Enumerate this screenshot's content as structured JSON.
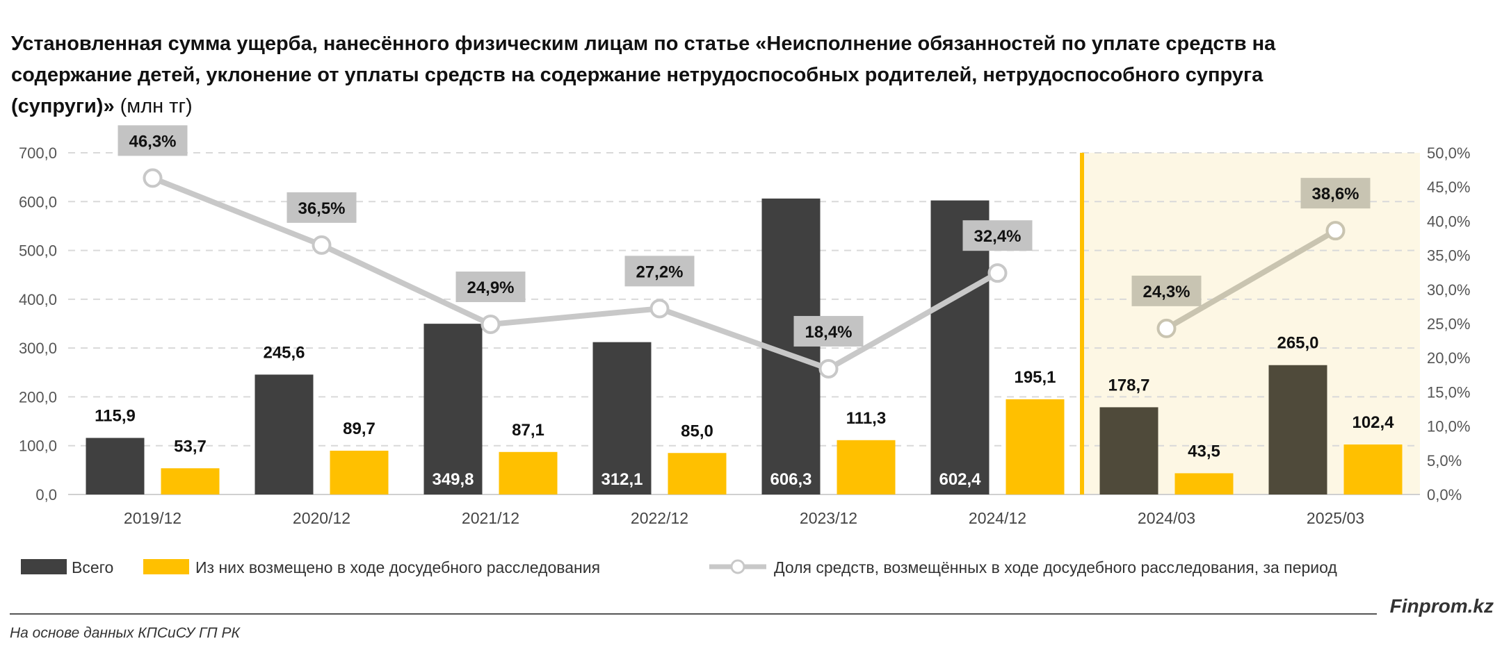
{
  "chart_data": {
    "type": "bar",
    "title": "Установленная сумма ущерба, нанесённого физическим лицам по статье «Неисполнение обязанностей по уплате средств на содержание детей, уклонение от уплаты средств на содержание нетрудоспособных родителей, нетрудоспособного супруга (супруги)»",
    "title_lines": [
      "Установленная сумма ущерба, нанесённого физическим лицам по статье «Неисполнение обязанностей по уплате средств на",
      "содержание детей, уклонение от уплаты средств на содержание нетрудоспособных родителей, нетрудоспособного супруга",
      "(супруги)»"
    ],
    "unit": "(млн тг)",
    "categories": [
      "2019/12",
      "2020/12",
      "2021/12",
      "2022/12",
      "2023/12",
      "2024/12",
      "2024/03",
      "2025/03"
    ],
    "series": [
      {
        "name": "Всего",
        "type": "bar",
        "axis": "left",
        "values": [
          115.9,
          245.6,
          349.8,
          312.1,
          606.3,
          602.4,
          178.7,
          265.0
        ],
        "labels": [
          "115,9",
          "245,6",
          "349,8",
          "312,1",
          "606,3",
          "602,4",
          "178,7",
          "265,0"
        ]
      },
      {
        "name": "Из них возмещено в ходе досудебного расследования",
        "type": "bar",
        "axis": "left",
        "values": [
          53.7,
          89.7,
          87.1,
          85.0,
          111.3,
          195.1,
          43.5,
          102.4
        ],
        "labels": [
          "53,7",
          "89,7",
          "87,1",
          "85,0",
          "111,3",
          "195,1",
          "43,5",
          "102,4"
        ]
      },
      {
        "name": "Доля средств, возмещённых в ходе досудебного расследования, за период",
        "type": "line",
        "axis": "right",
        "values": [
          46.3,
          36.5,
          24.9,
          27.2,
          18.4,
          32.4,
          24.3,
          38.6
        ],
        "labels": [
          "46,3%",
          "36,5%",
          "24,9%",
          "27,2%",
          "18,4%",
          "32,4%",
          "24,3%",
          "38,6%"
        ]
      }
    ],
    "ylim_left": [
      0,
      700
    ],
    "yticks_left": [
      "0,0",
      "100,0",
      "200,0",
      "300,0",
      "400,0",
      "500,0",
      "600,0",
      "700,0"
    ],
    "ylim_right": [
      0,
      50
    ],
    "yticks_right": [
      "0,0%",
      "5,0%",
      "10,0%",
      "15,0%",
      "20,0%",
      "25,0%",
      "30,0%",
      "35,0%",
      "40,0%",
      "45,0%",
      "50,0%"
    ],
    "grid": true,
    "legend_position": "bottom",
    "highlighted_categories": [
      "2024/03",
      "2025/03"
    ],
    "colors": {
      "total": "#404040",
      "total_highlight": "#4f4a3a",
      "refunded": "#ffc000",
      "line": "#c8c8c8",
      "line_highlight": "#c9c4b0",
      "highlight_bg": "#fdf7e4",
      "divider": "#ffc000",
      "label_box": "#c3c3c3",
      "label_box_highlight": "#c8c4b2"
    }
  },
  "footer": {
    "source": "На основе данных КПСиСУ ГП РК",
    "brand": "Finprom.kz"
  }
}
